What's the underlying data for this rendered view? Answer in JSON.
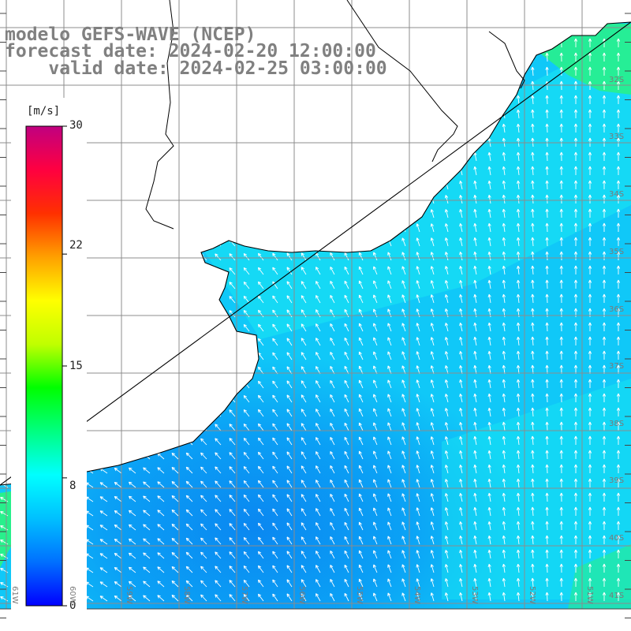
{
  "title": {
    "line1": "modelo GEFS-WAVE (NCEP)",
    "line2": "forecast date: 2024-02-20 12:00:00",
    "line3": "    valid date: 2024-02-25 03:00:00"
  },
  "colorbar": {
    "unit": "[m/s]",
    "ticks": [
      {
        "label": "30",
        "value": 30
      },
      {
        "label": "22",
        "value": 22
      },
      {
        "label": "15",
        "value": 15
      },
      {
        "label": "8",
        "value": 8
      },
      {
        "label": "0",
        "value": 0
      }
    ],
    "colors": [
      "#0000ff",
      "#0070ff",
      "#00c0ff",
      "#00ffff",
      "#00ff80",
      "#00ff00",
      "#c0ff00",
      "#ffff00",
      "#ffa000",
      "#ff3000",
      "#ff0040",
      "#c00080"
    ]
  },
  "lat_labels": [
    "32S",
    "33S",
    "34S",
    "35S",
    "36S",
    "37S",
    "38S",
    "39S",
    "40S",
    "41S"
  ],
  "lon_labels": [
    "61W",
    "60W",
    "59W",
    "58W",
    "57W",
    "56W",
    "55W",
    "54W",
    "53W",
    "52W",
    "51W"
  ],
  "field": {
    "colors": {
      "cyan": "#19e8f2",
      "light_blue": "#10c8f8",
      "blue": "#0a9cf5",
      "deep_blue": "#0a80f0",
      "green": "#28f08c",
      "land": "#ffffff",
      "coast": "#000000",
      "grid": "#8c8c8c",
      "arrow": "#ffffff"
    }
  }
}
